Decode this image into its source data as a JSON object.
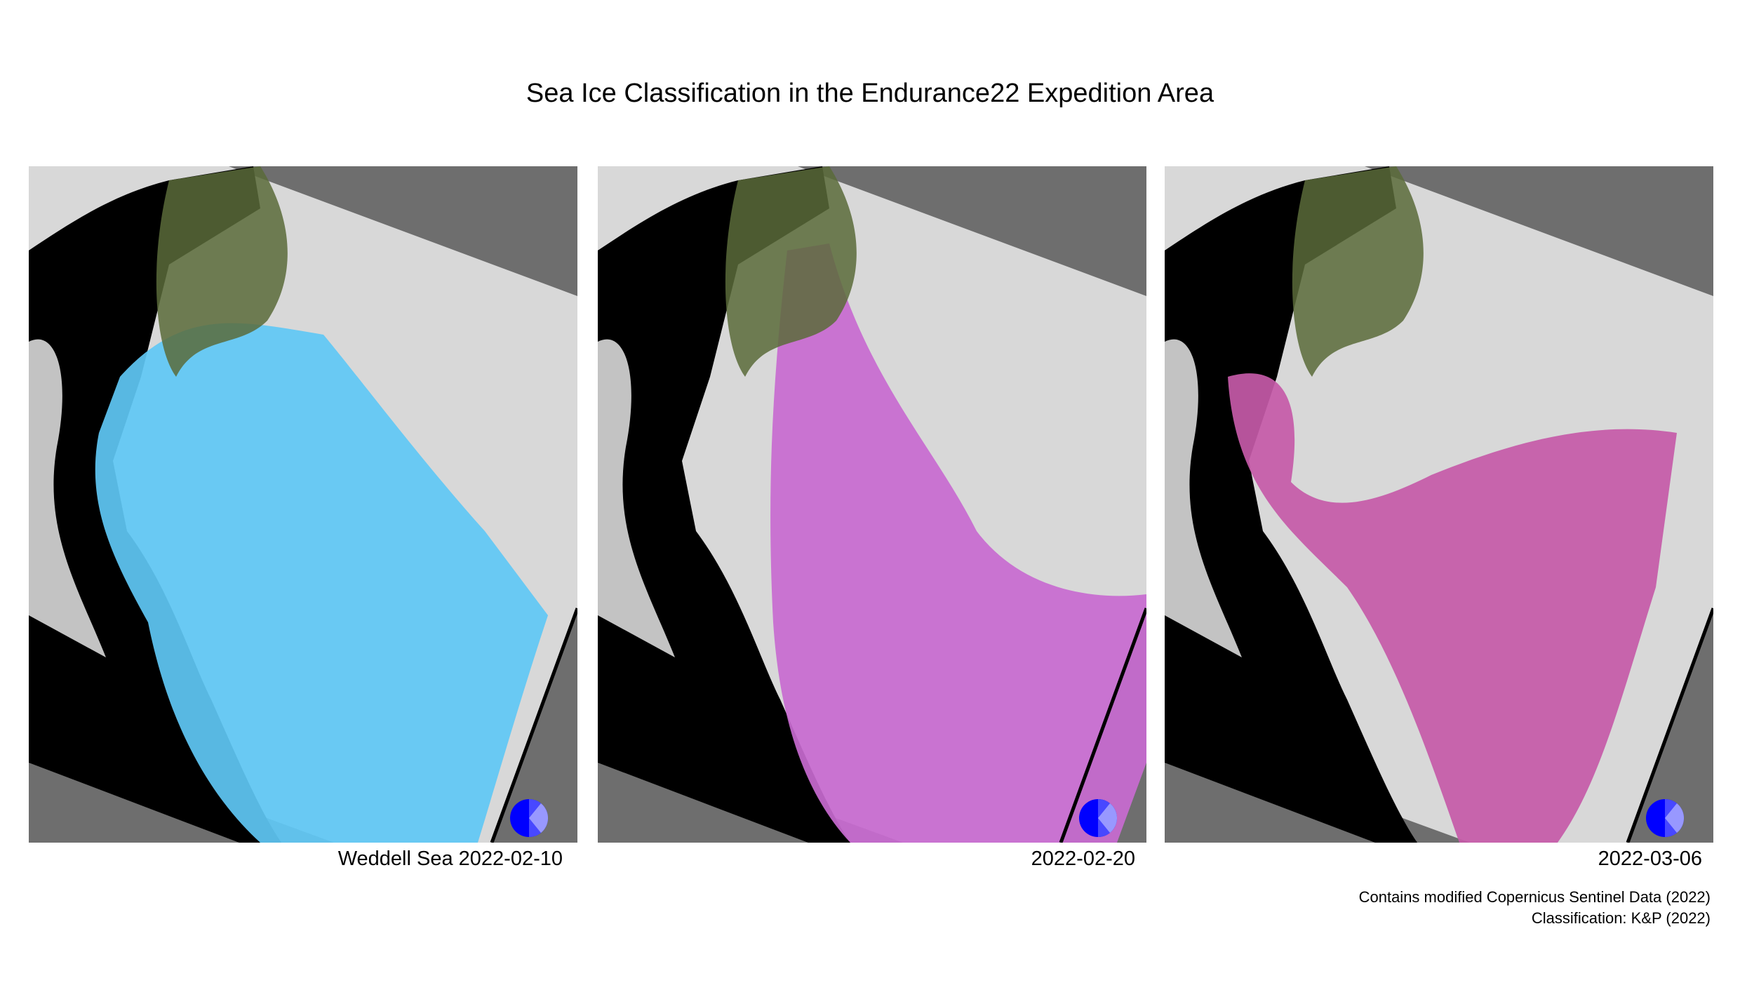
{
  "title": "Sea Ice Classification in the Endurance22 Expedition Area",
  "panels": [
    {
      "caption": "Weddell Sea  2022-02-10",
      "ice_color": "#5fc8f5",
      "icon": "pie-logo-icon"
    },
    {
      "caption": "2022-02-20",
      "ice_color": "#c86ad0",
      "icon": "pie-logo-icon"
    },
    {
      "caption": "2022-03-06",
      "ice_color": "#c55aa8",
      "icon": "pie-logo-icon"
    }
  ],
  "credits": {
    "line1": "Contains modified Copernicus Sentinel Data (2022)",
    "line2": "Classification: K&P (2022)"
  },
  "colors": {
    "nodata": "#6e6e6e",
    "land": "#000000",
    "cloud": "#d8d8d8",
    "vegetation_tone": "#5a6b3a",
    "logo_blue": "#0000ff"
  }
}
